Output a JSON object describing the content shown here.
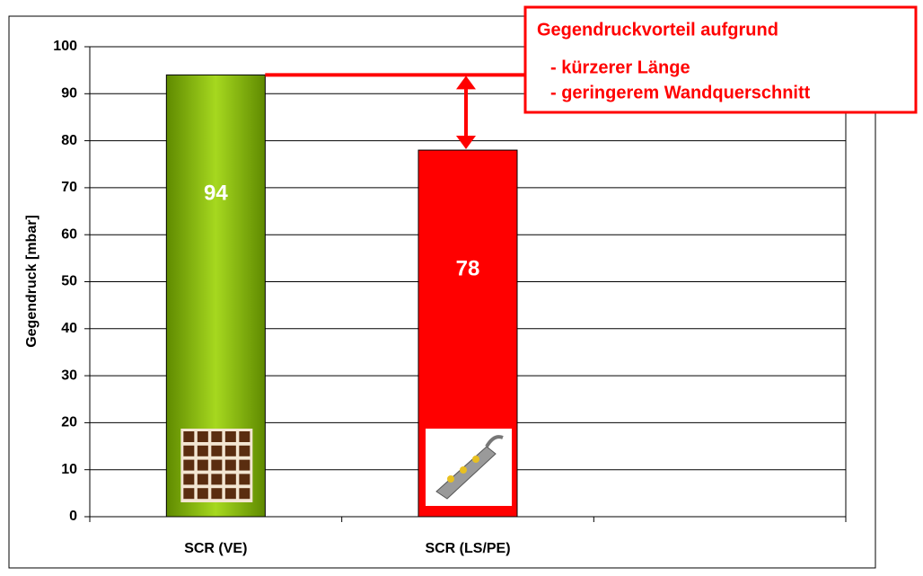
{
  "chart_data": {
    "type": "bar",
    "y_label": "Gegendruck [mbar]",
    "categories": [
      "SCR (VE)",
      "SCR (LS/PE)",
      null
    ],
    "values": [
      94,
      78,
      null
    ],
    "colors": [
      "#7fb800",
      "#ff0000"
    ],
    "ylim": [
      0,
      100
    ],
    "yticks": [
      0,
      10,
      20,
      30,
      40,
      50,
      60,
      70,
      80,
      90,
      100
    ],
    "grid": true,
    "annotation": {
      "lines": [
        "Gegendruckvorteil aufgrund",
        "- kürzerer Länge",
        "- geringerem Wandquerschnitt"
      ],
      "color": "#ff0000"
    }
  }
}
